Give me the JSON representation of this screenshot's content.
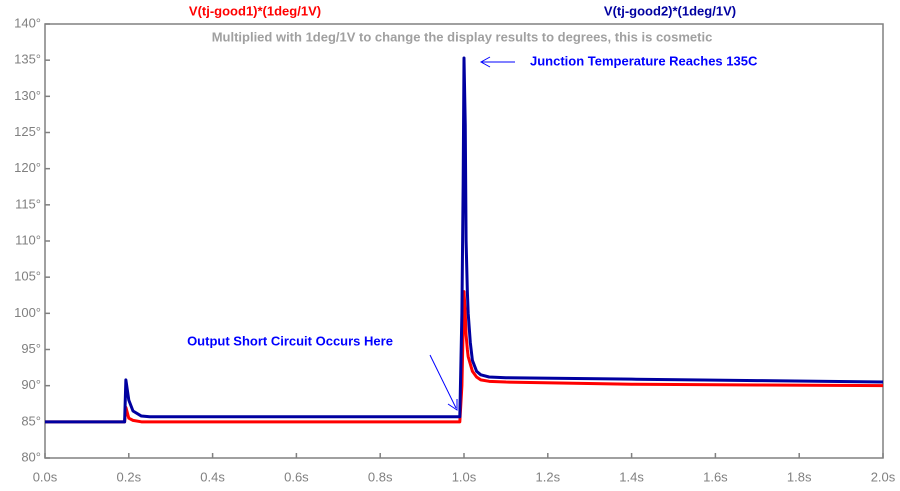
{
  "chart_data": {
    "type": "line",
    "title": "Multiplied with 1deg/1V to change the display results to degrees, this is cosmetic",
    "annotations": [
      "Junction Temperature Reaches 135C",
      "Output Short Circuit Occurs Here"
    ],
    "x": [
      0,
      0.19,
      0.193,
      0.2,
      0.21,
      0.23,
      0.25,
      0.6,
      0.99,
      0.995,
      0.998,
      1.0,
      1.003,
      1.005,
      1.008,
      1.01,
      1.015,
      1.02,
      1.03,
      1.04,
      1.06,
      1.1,
      1.4,
      1.7,
      2.0
    ],
    "series": [
      {
        "name": "V(tj-good1)*(1deg/1V)",
        "color": "#ff0000",
        "values": [
          85,
          85,
          87,
          85.5,
          85.2,
          85,
          85,
          85,
          85,
          90,
          98,
          103,
          100,
          97,
          95,
          94,
          93,
          92,
          91.2,
          90.8,
          90.6,
          90.5,
          90.2,
          90.1,
          90
        ]
      },
      {
        "name": "V(tj-good2)*(1deg/1V)",
        "color": "#0000a0",
        "values": [
          85,
          85,
          90.8,
          88,
          86.5,
          85.8,
          85.7,
          85.7,
          85.7,
          100,
          118,
          135.3,
          126,
          110,
          103,
          100,
          96,
          93.5,
          92,
          91.5,
          91.2,
          91.1,
          90.9,
          90.7,
          90.5
        ]
      }
    ],
    "xlim": [
      0,
      2.0
    ],
    "xticks": [
      {
        "value": 0,
        "label": "0.0s"
      },
      {
        "value": 0.2,
        "label": "0.2s"
      },
      {
        "value": 0.4,
        "label": "0.4s"
      },
      {
        "value": 0.6,
        "label": "0.6s"
      },
      {
        "value": 0.8,
        "label": "0.8s"
      },
      {
        "value": 1.0,
        "label": "1.0s"
      },
      {
        "value": 1.2,
        "label": "1.2s"
      },
      {
        "value": 1.4,
        "label": "1.4s"
      },
      {
        "value": 1.6,
        "label": "1.6s"
      },
      {
        "value": 1.8,
        "label": "1.8s"
      },
      {
        "value": 2.0,
        "label": "2.0s"
      }
    ],
    "ylim": [
      80,
      140
    ],
    "yticks": [
      {
        "value": 80,
        "label": "80°"
      },
      {
        "value": 85,
        "label": "85°"
      },
      {
        "value": 90,
        "label": "90°"
      },
      {
        "value": 95,
        "label": "95°"
      },
      {
        "value": 100,
        "label": "100°"
      },
      {
        "value": 105,
        "label": "105°"
      },
      {
        "value": 110,
        "label": "110°"
      },
      {
        "value": 115,
        "label": "115°"
      },
      {
        "value": 120,
        "label": "120°"
      },
      {
        "value": 125,
        "label": "125°"
      },
      {
        "value": 130,
        "label": "130°"
      },
      {
        "value": 135,
        "label": "135°"
      },
      {
        "value": 140,
        "label": "140°"
      }
    ],
    "grid": false
  }
}
